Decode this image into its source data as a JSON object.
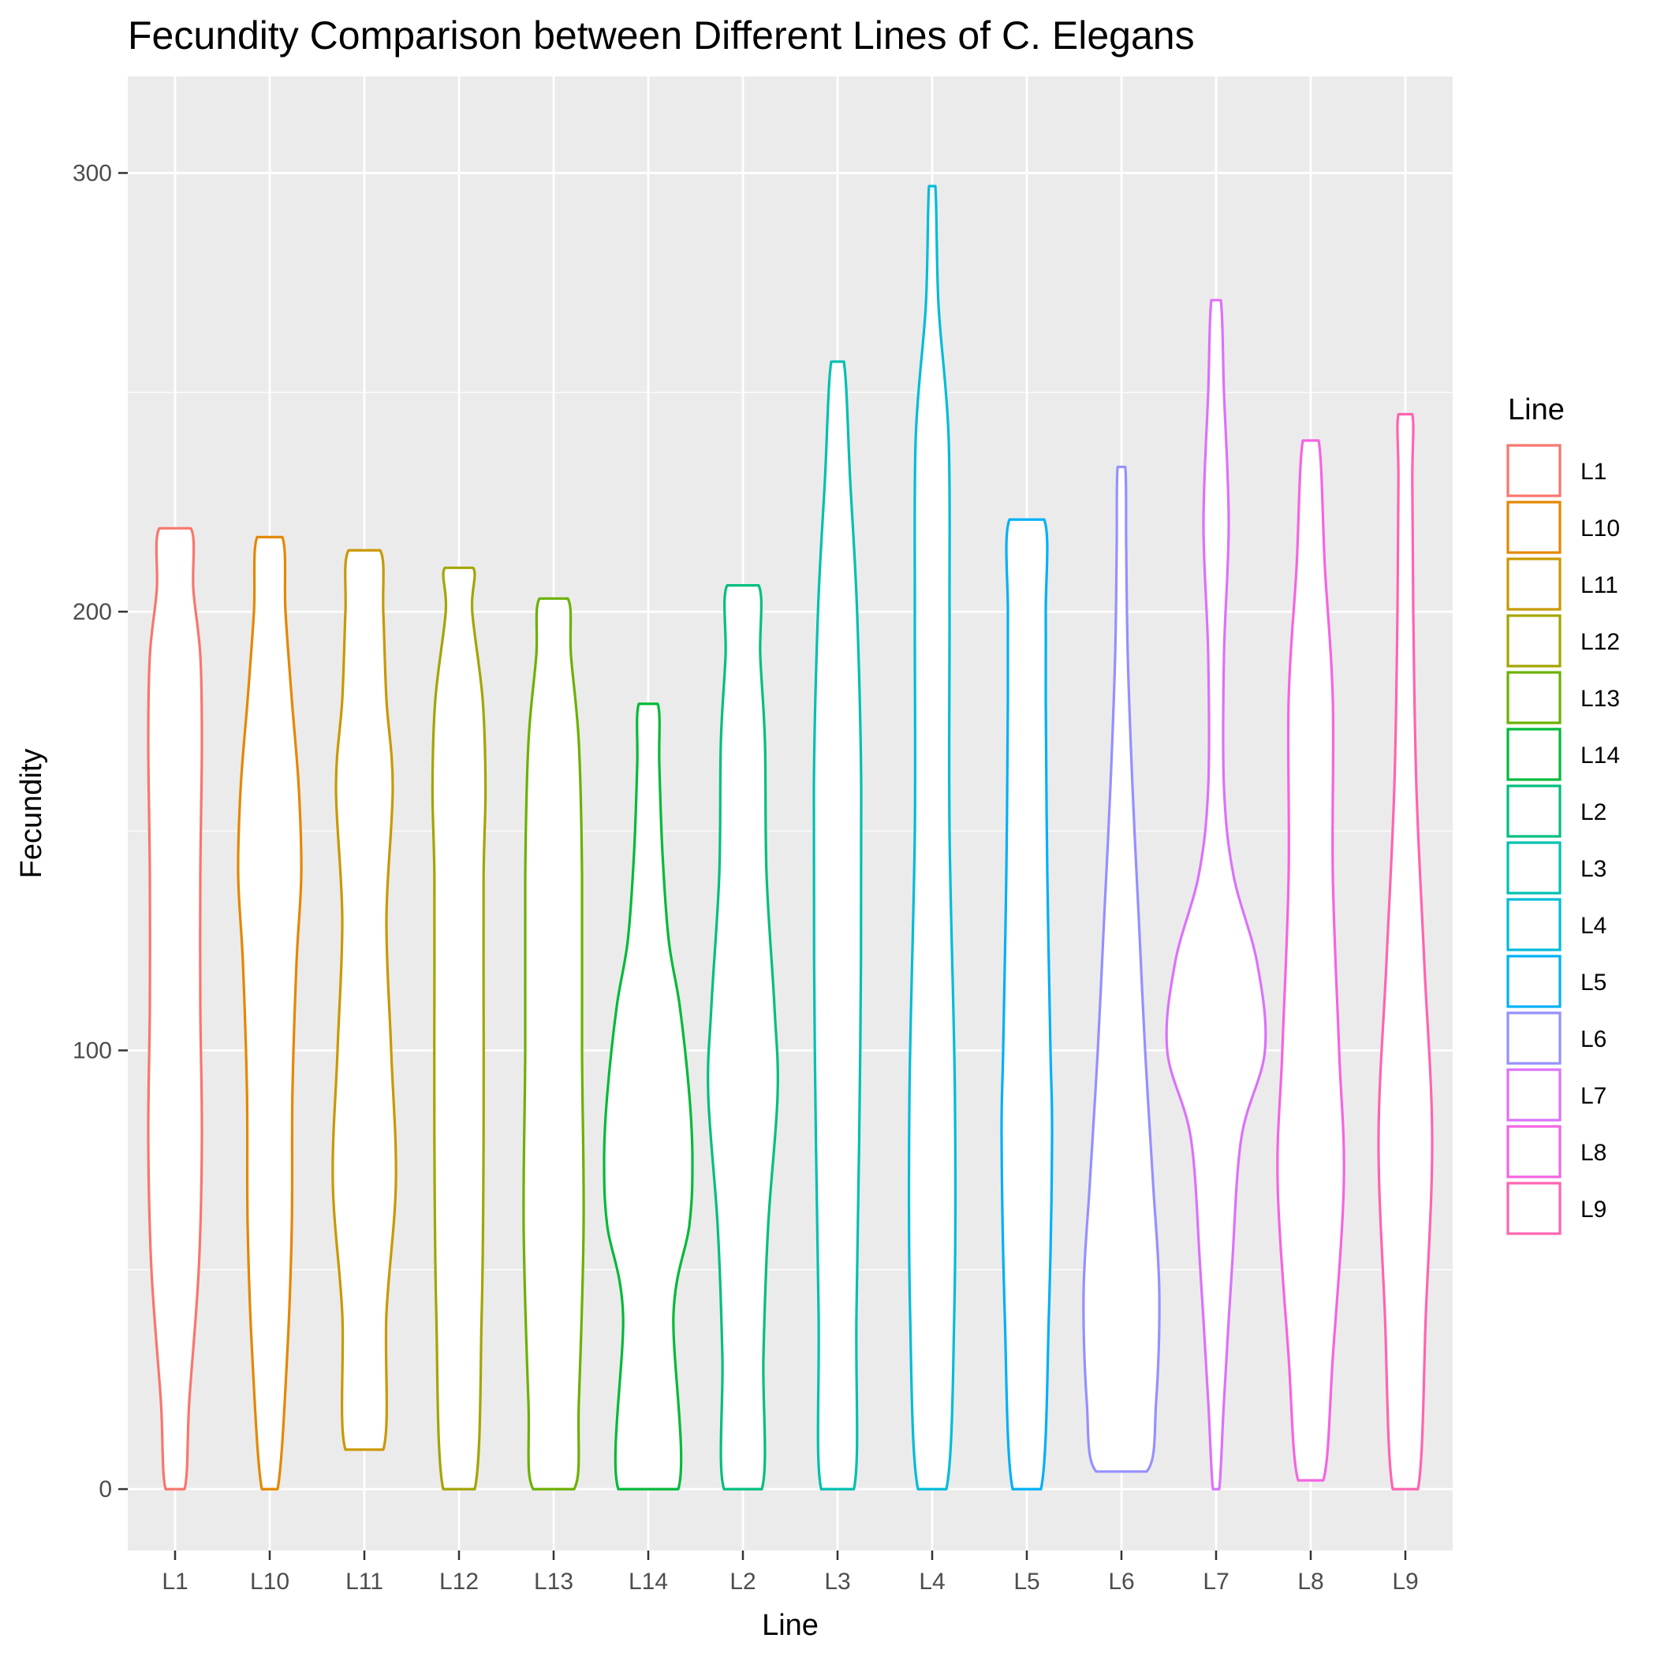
{
  "chart_data": {
    "type": "violin",
    "title": "Fecundity Comparison between Different Lines of C. Elegans",
    "xlabel": "Line",
    "ylabel": "Fecundity",
    "ylim": [
      -14,
      322
    ],
    "y_ticks": [
      0,
      100,
      200,
      300
    ],
    "grid": true,
    "legend": {
      "title": "Line",
      "placement": "right"
    },
    "categories": [
      "L1",
      "L10",
      "L11",
      "L12",
      "L13",
      "L14",
      "L2",
      "L3",
      "L4",
      "L5",
      "L6",
      "L7",
      "L8",
      "L9"
    ],
    "series": [
      {
        "name": "L1",
        "color": "#F8766D",
        "min": 0,
        "max": 219,
        "profile": [
          [
            0,
            0.3
          ],
          [
            20,
            0.45
          ],
          [
            50,
            0.75
          ],
          [
            80,
            0.85
          ],
          [
            110,
            0.8
          ],
          [
            140,
            0.8
          ],
          [
            170,
            0.85
          ],
          [
            190,
            0.8
          ],
          [
            205,
            0.58
          ],
          [
            219,
            0.5
          ]
        ]
      },
      {
        "name": "L10",
        "color": "#E58700",
        "min": 0,
        "max": 217,
        "profile": [
          [
            0,
            0.25
          ],
          [
            30,
            0.55
          ],
          [
            60,
            0.7
          ],
          [
            90,
            0.72
          ],
          [
            120,
            0.85
          ],
          [
            140,
            1.0
          ],
          [
            160,
            0.92
          ],
          [
            180,
            0.7
          ],
          [
            200,
            0.5
          ],
          [
            217,
            0.4
          ]
        ]
      },
      {
        "name": "L11",
        "color": "#C99800",
        "min": 9,
        "max": 214,
        "profile": [
          [
            9,
            0.6
          ],
          [
            40,
            0.7
          ],
          [
            70,
            1.0
          ],
          [
            100,
            0.85
          ],
          [
            130,
            0.7
          ],
          [
            160,
            0.9
          ],
          [
            180,
            0.7
          ],
          [
            200,
            0.6
          ],
          [
            214,
            0.5
          ]
        ]
      },
      {
        "name": "L12",
        "color": "#A3A500",
        "min": 0,
        "max": 210,
        "profile": [
          [
            0,
            0.5
          ],
          [
            40,
            0.72
          ],
          [
            80,
            0.78
          ],
          [
            110,
            0.78
          ],
          [
            140,
            0.78
          ],
          [
            160,
            0.84
          ],
          [
            180,
            0.75
          ],
          [
            200,
            0.42
          ],
          [
            210,
            0.45
          ]
        ]
      },
      {
        "name": "L13",
        "color": "#6BB100",
        "min": 0,
        "max": 203,
        "profile": [
          [
            0,
            0.65
          ],
          [
            20,
            0.8
          ],
          [
            60,
            0.95
          ],
          [
            100,
            0.9
          ],
          [
            140,
            0.9
          ],
          [
            170,
            0.8
          ],
          [
            190,
            0.55
          ],
          [
            203,
            0.45
          ]
        ]
      },
      {
        "name": "L14",
        "color": "#00BA38",
        "min": 0,
        "max": 179,
        "profile": [
          [
            0,
            0.95
          ],
          [
            40,
            0.8
          ],
          [
            60,
            1.3
          ],
          [
            75,
            1.4
          ],
          [
            90,
            1.3
          ],
          [
            110,
            1.0
          ],
          [
            125,
            0.65
          ],
          [
            145,
            0.45
          ],
          [
            165,
            0.35
          ],
          [
            179,
            0.3
          ]
        ]
      },
      {
        "name": "L2",
        "color": "#00BF7D",
        "min": 0,
        "max": 206,
        "profile": [
          [
            0,
            0.6
          ],
          [
            30,
            0.65
          ],
          [
            60,
            0.8
          ],
          [
            90,
            1.1
          ],
          [
            110,
            1.0
          ],
          [
            140,
            0.75
          ],
          [
            170,
            0.7
          ],
          [
            190,
            0.55
          ],
          [
            206,
            0.5
          ]
        ]
      },
      {
        "name": "L3",
        "color": "#00C0AF",
        "min": 0,
        "max": 257,
        "profile": [
          [
            0,
            0.52
          ],
          [
            40,
            0.6
          ],
          [
            100,
            0.72
          ],
          [
            160,
            0.75
          ],
          [
            200,
            0.62
          ],
          [
            230,
            0.4
          ],
          [
            257,
            0.2
          ]
        ]
      },
      {
        "name": "L4",
        "color": "#00BCD8",
        "min": 0,
        "max": 297,
        "profile": [
          [
            0,
            0.45
          ],
          [
            40,
            0.7
          ],
          [
            90,
            0.72
          ],
          [
            150,
            0.55
          ],
          [
            200,
            0.55
          ],
          [
            240,
            0.52
          ],
          [
            270,
            0.2
          ],
          [
            297,
            0.1
          ]
        ]
      },
      {
        "name": "L5",
        "color": "#00B0F6",
        "min": 0,
        "max": 221,
        "profile": [
          [
            0,
            0.45
          ],
          [
            40,
            0.7
          ],
          [
            80,
            0.8
          ],
          [
            100,
            0.75
          ],
          [
            140,
            0.65
          ],
          [
            180,
            0.6
          ],
          [
            200,
            0.6
          ],
          [
            221,
            0.55
          ]
        ]
      },
      {
        "name": "L6",
        "color": "#9590FF",
        "min": 4,
        "max": 233,
        "profile": [
          [
            4,
            0.8
          ],
          [
            20,
            1.1
          ],
          [
            45,
            1.2
          ],
          [
            70,
            1.0
          ],
          [
            100,
            0.75
          ],
          [
            130,
            0.55
          ],
          [
            160,
            0.35
          ],
          [
            190,
            0.2
          ],
          [
            215,
            0.15
          ],
          [
            233,
            0.12
          ]
        ]
      },
      {
        "name": "L7",
        "color": "#DC71FA",
        "min": 0,
        "max": 271,
        "profile": [
          [
            0,
            0.1
          ],
          [
            20,
            0.25
          ],
          [
            50,
            0.5
          ],
          [
            80,
            0.8
          ],
          [
            100,
            1.55
          ],
          [
            120,
            1.3
          ],
          [
            140,
            0.55
          ],
          [
            160,
            0.25
          ],
          [
            190,
            0.25
          ],
          [
            220,
            0.4
          ],
          [
            250,
            0.25
          ],
          [
            271,
            0.15
          ]
        ]
      },
      {
        "name": "L8",
        "color": "#F564E3",
        "min": 2,
        "max": 239,
        "profile": [
          [
            2,
            0.4
          ],
          [
            30,
            0.7
          ],
          [
            70,
            1.05
          ],
          [
            100,
            0.9
          ],
          [
            140,
            0.7
          ],
          [
            180,
            0.7
          ],
          [
            210,
            0.45
          ],
          [
            239,
            0.25
          ]
        ]
      },
      {
        "name": "L9",
        "color": "#FF64B0",
        "min": 0,
        "max": 245,
        "profile": [
          [
            0,
            0.4
          ],
          [
            40,
            0.65
          ],
          [
            80,
            0.85
          ],
          [
            120,
            0.6
          ],
          [
            160,
            0.35
          ],
          [
            200,
            0.25
          ],
          [
            230,
            0.22
          ],
          [
            245,
            0.22
          ]
        ]
      }
    ]
  }
}
